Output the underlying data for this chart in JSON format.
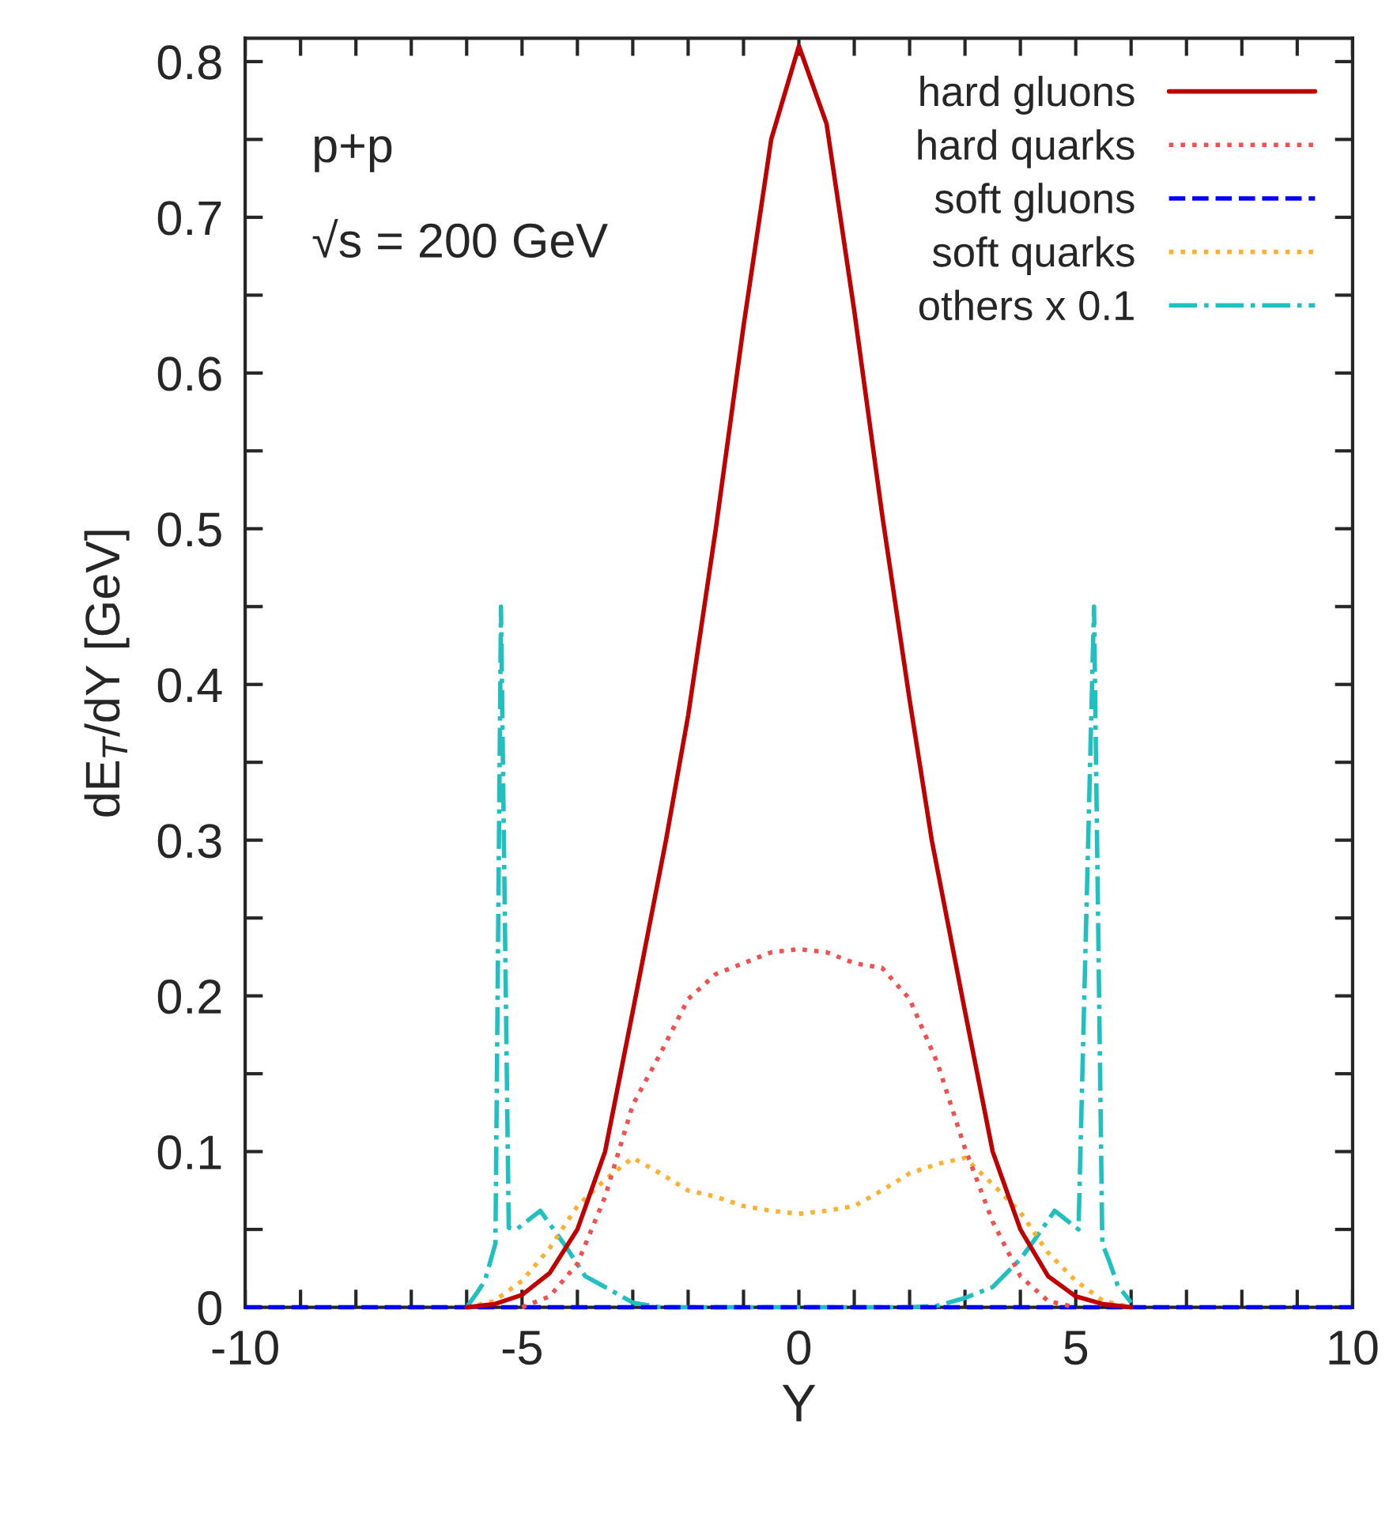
{
  "chart_data": {
    "type": "line",
    "xlabel": "Y",
    "ylabel": "dE$_{T}$/dY [GeV]",
    "annotations": [
      "p+p",
      "√s = 200 GeV"
    ],
    "xlim": [
      -10,
      10
    ],
    "ylim": [
      0,
      0.815
    ],
    "xticks": [
      -10,
      {
        "value": -9,
        "label": null
      },
      {
        "value": -8,
        "label": null
      },
      {
        "value": -7,
        "label": null
      },
      {
        "value": -6,
        "label": null
      },
      -5,
      {
        "value": -4,
        "label": null
      },
      {
        "value": -3,
        "label": null
      },
      {
        "value": -2,
        "label": null
      },
      {
        "value": -1,
        "label": null
      },
      0,
      {
        "value": 1,
        "label": null
      },
      {
        "value": 2,
        "label": null
      },
      {
        "value": 3,
        "label": null
      },
      {
        "value": 4,
        "label": null
      },
      5,
      {
        "value": 6,
        "label": null
      },
      {
        "value": 7,
        "label": null
      },
      {
        "value": 8,
        "label": null
      },
      {
        "value": 9,
        "label": null
      },
      10
    ],
    "yticks": [
      0,
      {
        "value": 0.05,
        "label": null
      },
      0.1,
      {
        "value": 0.15,
        "label": null
      },
      0.2,
      {
        "value": 0.25,
        "label": null
      },
      0.3,
      {
        "value": 0.35,
        "label": null
      },
      0.4,
      {
        "value": 0.45,
        "label": null
      },
      0.5,
      {
        "value": 0.55,
        "label": null
      },
      0.6,
      {
        "value": 0.65,
        "label": null
      },
      0.7,
      {
        "value": 0.75,
        "label": null
      },
      0.8
    ],
    "grid": false,
    "legend": "top right",
    "series": [
      {
        "name": "hard gluons",
        "color": "#c00000",
        "line_style": "solid",
        "x": [
          -6,
          -5.5,
          -5,
          -4.5,
          -4,
          -3.5,
          -3,
          -2.4,
          -2,
          -1.5,
          -1,
          -0.5,
          0,
          0.5,
          1,
          1.5,
          2,
          2.4,
          3,
          3.5,
          4,
          4.5,
          5,
          5.5,
          6
        ],
        "values": [
          0,
          0.002,
          0.008,
          0.022,
          0.05,
          0.1,
          0.19,
          0.3,
          0.38,
          0.5,
          0.63,
          0.75,
          0.81,
          0.76,
          0.64,
          0.51,
          0.39,
          0.3,
          0.19,
          0.1,
          0.05,
          0.02,
          0.007,
          0.002,
          0
        ]
      },
      {
        "name": "hard quarks",
        "color": "#f05050",
        "line_style": "dotted",
        "x": [
          -5,
          -4.5,
          -4,
          -3.5,
          -3,
          -2.5,
          -2,
          -1.5,
          -1,
          -0.5,
          0,
          0.5,
          1,
          1.5,
          2,
          2.5,
          3,
          3.5,
          4,
          4.5,
          5
        ],
        "values": [
          0,
          0.007,
          0.028,
          0.071,
          0.13,
          0.163,
          0.198,
          0.214,
          0.221,
          0.228,
          0.23,
          0.228,
          0.221,
          0.218,
          0.198,
          0.157,
          0.102,
          0.055,
          0.02,
          0.004,
          0
        ]
      },
      {
        "name": "soft gluons",
        "color": "#0000ff",
        "line_style": "dashed",
        "x": [
          -10,
          -5,
          0,
          5,
          10
        ],
        "values": [
          0,
          0,
          0,
          0,
          0
        ]
      },
      {
        "name": "soft quarks",
        "color": "#ffb030",
        "line_style": "dotted",
        "x": [
          -6,
          -5.5,
          -5,
          -4.5,
          -4,
          -3.5,
          -3,
          -2.5,
          -2,
          -1.5,
          -1,
          -0.5,
          0,
          0.5,
          1,
          1.5,
          2,
          2.5,
          3,
          3.5,
          4,
          4.5,
          5,
          5.5,
          6
        ],
        "values": [
          0,
          0.004,
          0.017,
          0.038,
          0.065,
          0.082,
          0.096,
          0.086,
          0.075,
          0.071,
          0.065,
          0.062,
          0.06,
          0.062,
          0.065,
          0.075,
          0.086,
          0.092,
          0.096,
          0.079,
          0.061,
          0.035,
          0.017,
          0.004,
          0
        ]
      },
      {
        "name": "others x 0.1",
        "color": "#20c0c0",
        "line_style": "dashdot",
        "x": [
          -6,
          -5.8,
          -5.67,
          -5.48,
          -5.38,
          -5.24,
          -5.1,
          -4.67,
          -4.19,
          -3.86,
          -3.5,
          -3,
          -2.5,
          2,
          2.5,
          3,
          3.5,
          4,
          4.19,
          4.62,
          5.05,
          5.33,
          5.48,
          5.6,
          5.76,
          6
        ],
        "values": [
          0,
          0.01,
          0.017,
          0.041,
          0.45,
          0.051,
          0.05,
          0.062,
          0.038,
          0.02,
          0.013,
          0.003,
          0,
          0,
          0.001,
          0.006,
          0.013,
          0.031,
          0.04,
          0.062,
          0.05,
          0.45,
          0.041,
          0.03,
          0.014,
          0.003
        ]
      }
    ]
  }
}
